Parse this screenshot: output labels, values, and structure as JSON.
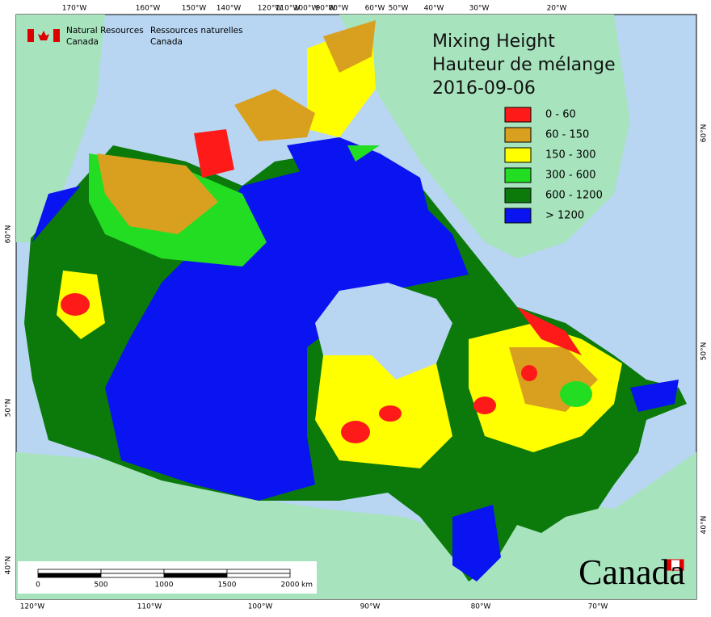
{
  "header": {
    "agency_en": [
      "Natural Resources",
      "Canada"
    ],
    "agency_fr": [
      "Ressources naturelles",
      "Canada"
    ]
  },
  "title": [
    "Mixing Height",
    "Hauteur de mélange",
    "2016-09-06"
  ],
  "legend": [
    {
      "label": "0 - 60",
      "color": "#ff1a1a"
    },
    {
      "label": "60 - 150",
      "color": "#d9a020"
    },
    {
      "label": "150 - 300",
      "color": "#ffff00"
    },
    {
      "label": "300 - 600",
      "color": "#22dd22"
    },
    {
      "label": "600 - 1200",
      "color": "#0b7a0b"
    },
    {
      "label": "> 1200",
      "color": "#0a14f0"
    }
  ],
  "graticule": {
    "top": [
      "170°W",
      "160°W",
      "150°W",
      "140°W",
      "120°W",
      "110°W",
      "100°W",
      "90°W",
      "80°W",
      "60°W",
      "50°W",
      "40°W",
      "30°W",
      "20°W"
    ],
    "bottom": [
      "120°W",
      "110°W",
      "100°W",
      "90°W",
      "80°W",
      "70°W"
    ],
    "left": [
      "60°N",
      "50°N",
      "40°N"
    ],
    "right": [
      "60°N",
      "50°N",
      "40°N"
    ]
  },
  "scale_bar": {
    "ticks": [
      0,
      500,
      1000,
      1500,
      2000
    ],
    "unit": "km"
  },
  "wordmark": "Canada"
}
